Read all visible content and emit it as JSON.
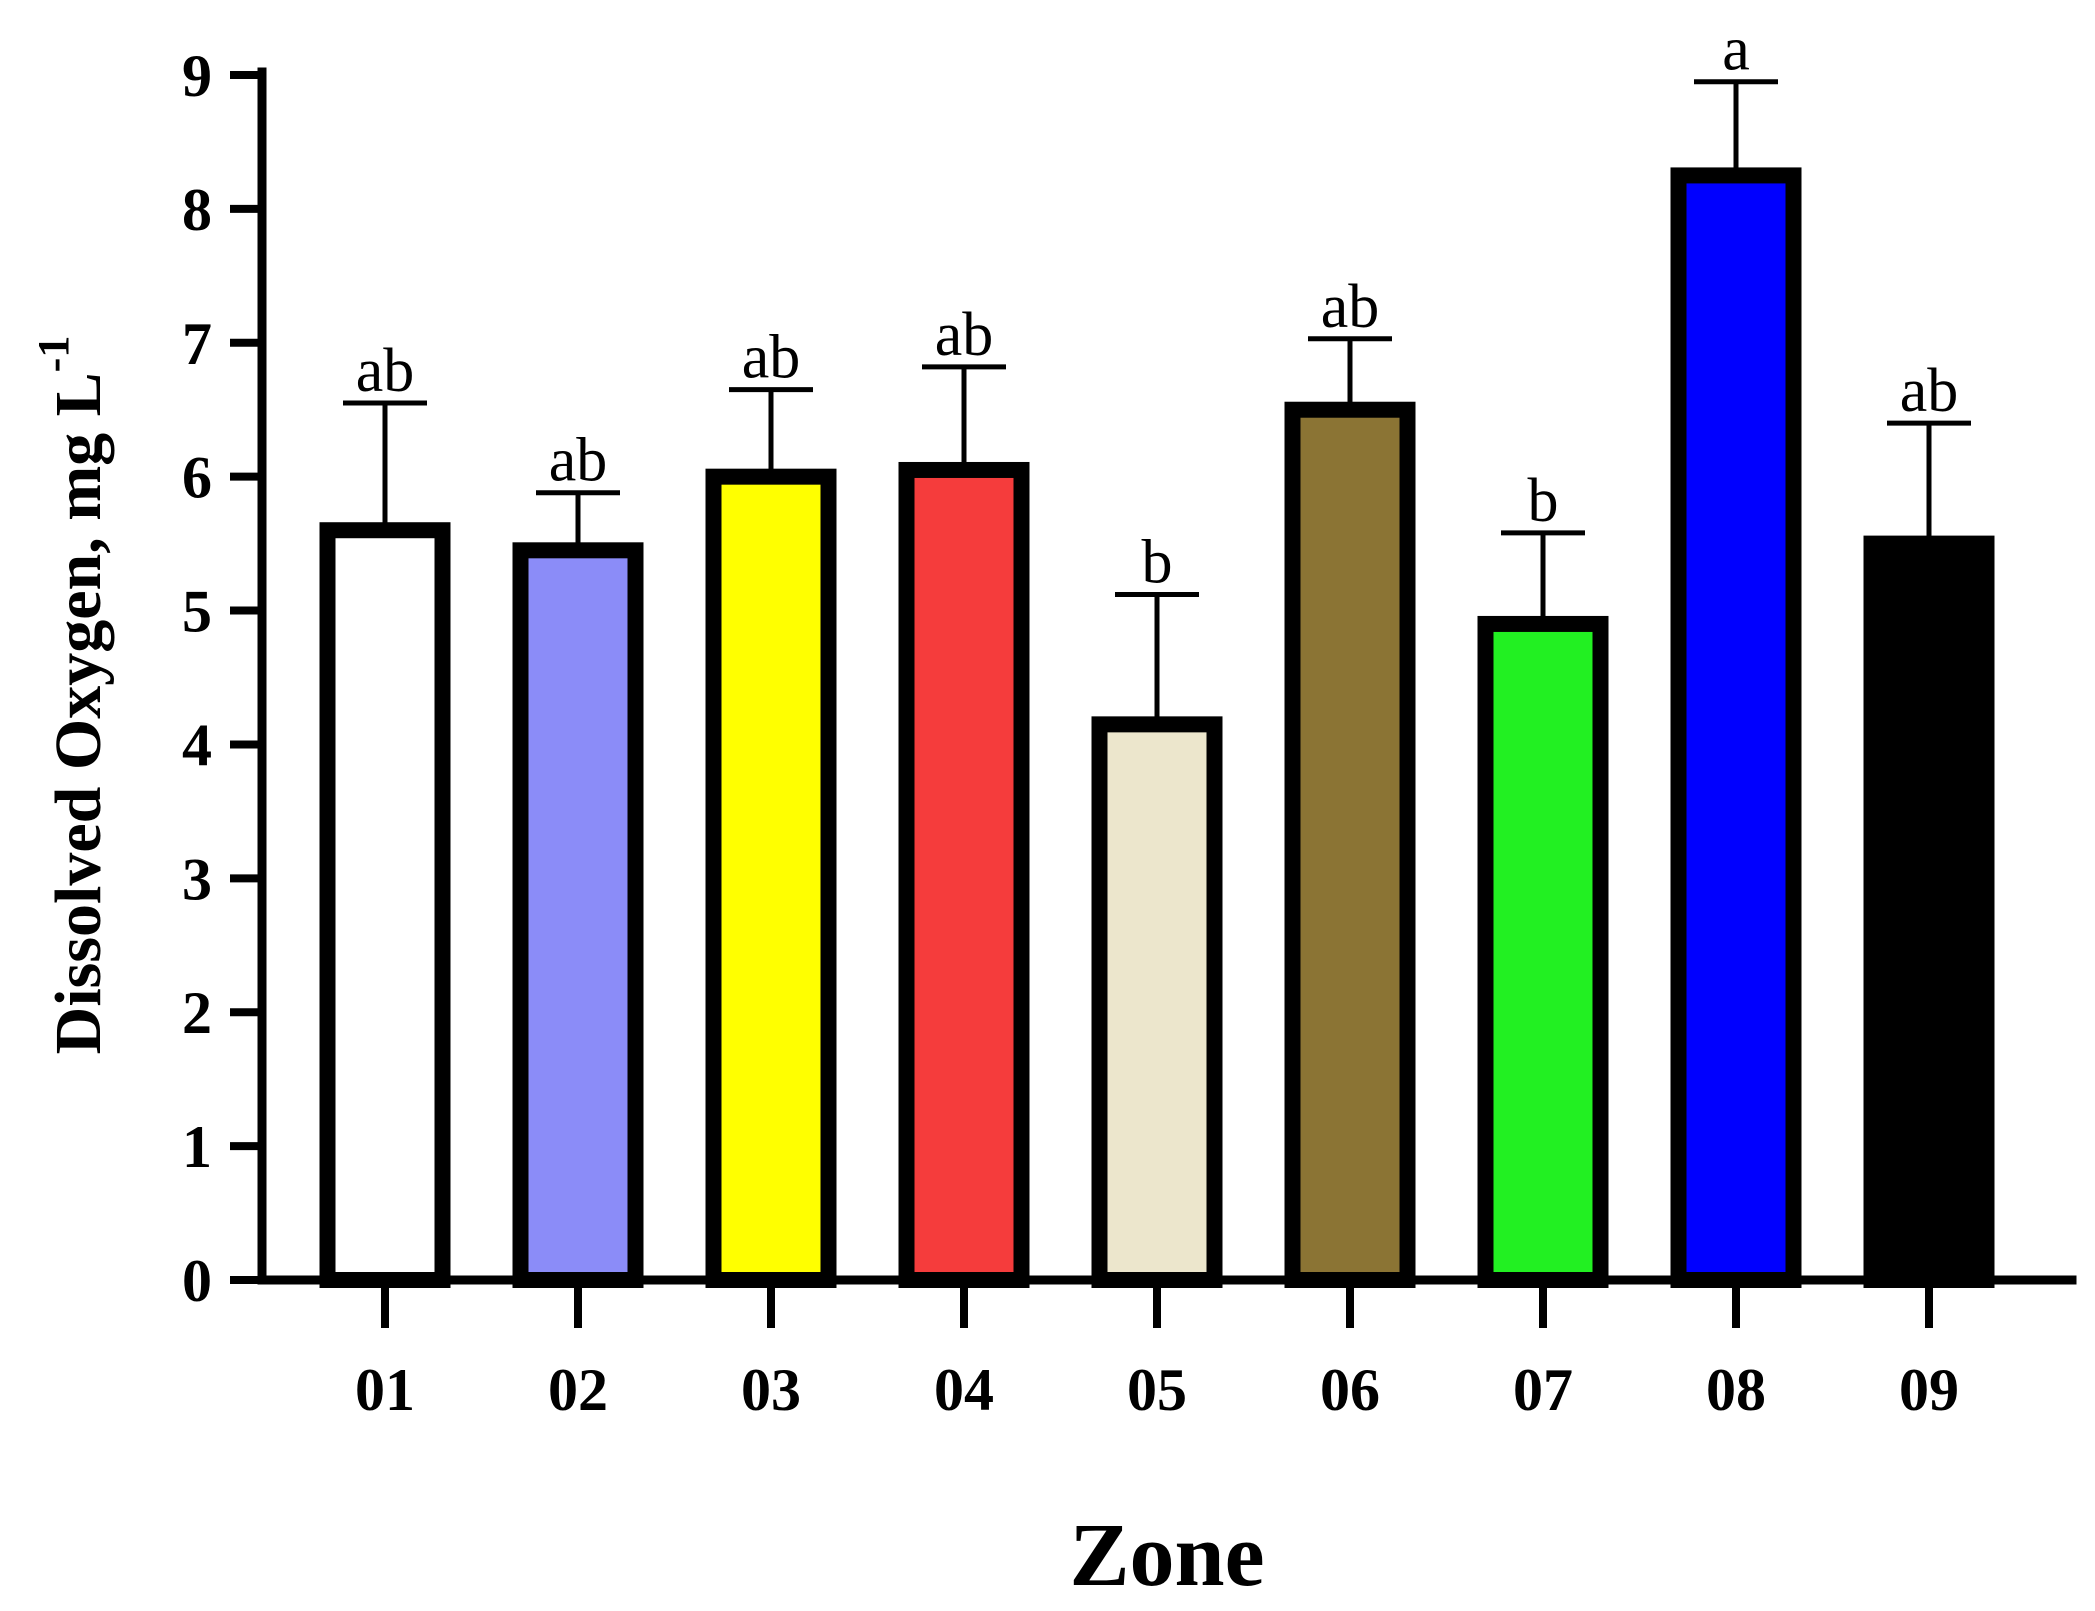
{
  "chart_data": {
    "type": "bar",
    "xlabel": "Zone",
    "ylabel_main": "Dissolved  Oxygen, mg L",
    "ylabel_sup": "-1",
    "ylim": [
      0,
      9
    ],
    "yticks": [
      "0",
      "1",
      "2",
      "3",
      "4",
      "5",
      "6",
      "7",
      "8",
      "9"
    ],
    "categories": [
      "01",
      "02",
      "03",
      "04",
      "05",
      "06",
      "07",
      "08",
      "09"
    ],
    "values": [
      5.6,
      5.45,
      6.0,
      6.05,
      4.15,
      6.5,
      4.9,
      8.25,
      5.5
    ],
    "error_upper": [
      6.55,
      5.88,
      6.65,
      6.82,
      5.12,
      7.03,
      5.58,
      8.95,
      6.4
    ],
    "significance": [
      "ab",
      "ab",
      "ab",
      "ab",
      "b",
      "ab",
      "b",
      "a",
      "ab"
    ],
    "colors": [
      "#ffffff",
      "#8b8cf8",
      "#ffff00",
      "#f53c3c",
      "#ece6cc",
      "#8b7434",
      "#22f022",
      "#0000ff",
      "#000000"
    ],
    "grid": false,
    "legend": "none"
  }
}
